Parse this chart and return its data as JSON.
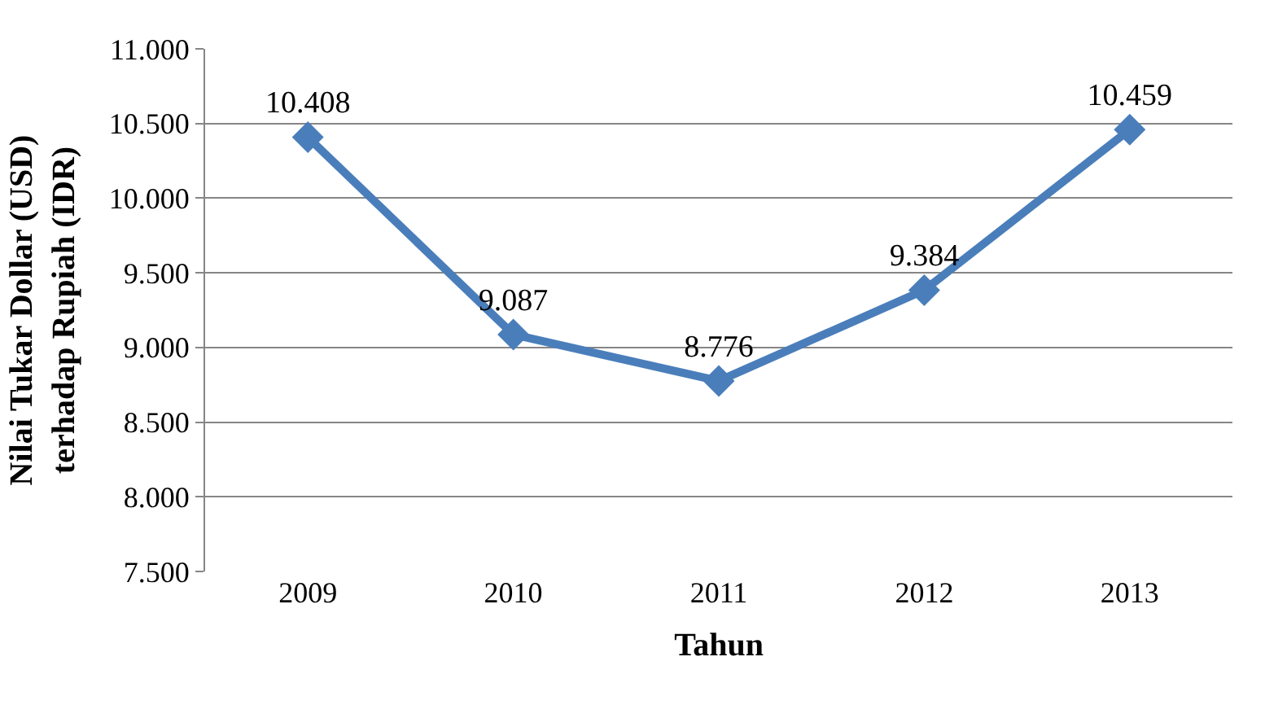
{
  "chart_data": {
    "type": "line",
    "xlabel": "Tahun",
    "ylabel": "Nilai Tukar Dollar (USD)\nterhadap Rupiah (IDR)",
    "categories": [
      "2009",
      "2010",
      "2011",
      "2012",
      "2013"
    ],
    "series": [
      {
        "color": "#4a7ebb",
        "values": [
          10408,
          9087,
          8776,
          9384,
          10459
        ],
        "value_labels": [
          "10.408",
          "9.087",
          "8.776",
          "9.384",
          "10.459"
        ]
      }
    ],
    "ylim": [
      7500,
      11000
    ],
    "yticks": [
      {
        "value": 7500,
        "label": "7.500"
      },
      {
        "value": 8000,
        "label": "8.000"
      },
      {
        "value": 8500,
        "label": "8.500"
      },
      {
        "value": 9000,
        "label": "9.000"
      },
      {
        "value": 9500,
        "label": "9.500"
      },
      {
        "value": 10000,
        "label": "10.000"
      },
      {
        "value": 10500,
        "label": "10.500"
      },
      {
        "value": 11000,
        "label": "11.000"
      }
    ],
    "grid": "y",
    "legend": false,
    "marker": "diamond",
    "line_style": "solid"
  }
}
